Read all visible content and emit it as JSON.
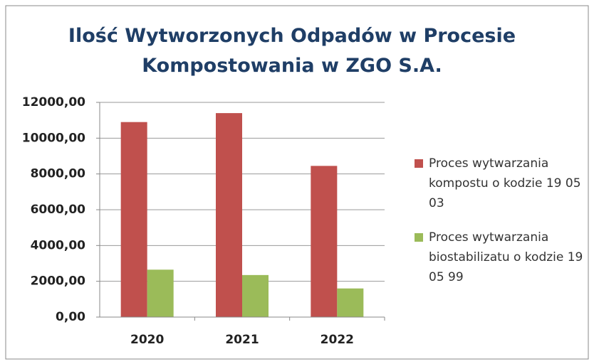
{
  "chart_data": {
    "type": "bar",
    "title": "Ilość Wytworzonych Odpadów w Procesie Kompostowania w ZGO S.A.",
    "categories": [
      "2020",
      "2021",
      "2022"
    ],
    "series": [
      {
        "name": "Proces wytwarzania kompostu o kodzie 19 05 03",
        "color": "#c0504d",
        "values": [
          10900,
          11400,
          8450
        ]
      },
      {
        "name": "Proces wytwarzania biostabilizatu o kodzie 19 05 99",
        "color": "#9bbb59",
        "values": [
          2650,
          2350,
          1600
        ]
      }
    ],
    "ylim": [
      0,
      12000
    ],
    "yticks": [
      {
        "value": 0,
        "label": "0,00"
      },
      {
        "value": 2000,
        "label": "2000,00"
      },
      {
        "value": 4000,
        "label": "4000,00"
      },
      {
        "value": 6000,
        "label": "6000,00"
      },
      {
        "value": 8000,
        "label": "8000,00"
      },
      {
        "value": 10000,
        "label": "10000,00"
      },
      {
        "value": 12000,
        "label": "12000,00"
      }
    ],
    "grid": true,
    "legend": "right"
  }
}
